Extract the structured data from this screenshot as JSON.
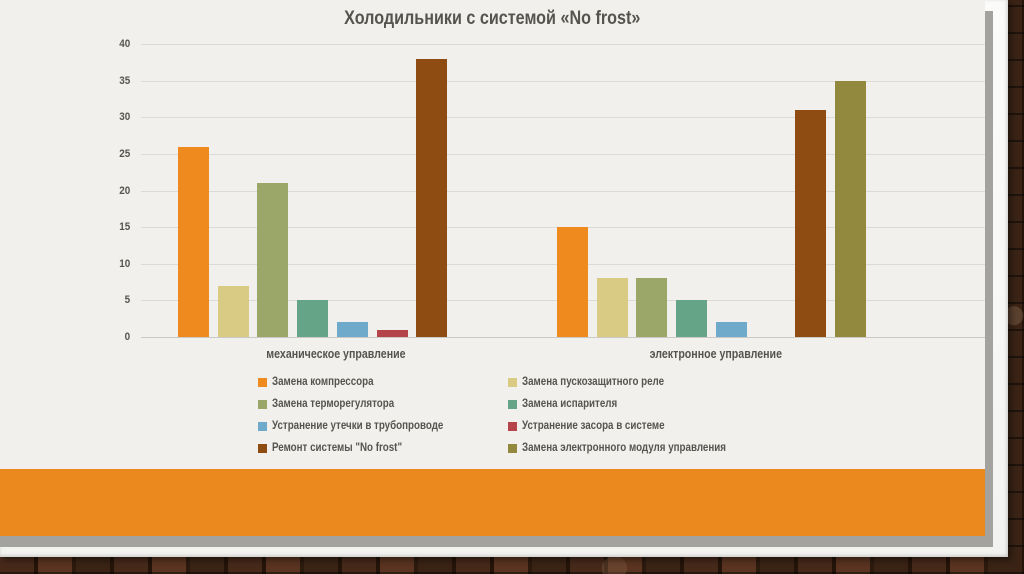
{
  "slide": {
    "theme": "paper on brick wall",
    "footer_band_color": "#EC891E"
  },
  "colors": {
    "panel_background": "#F1F0ED",
    "paper": "#FAFAF8",
    "panel_shadow": "#A3A29F",
    "gridline": "#DBDAD6",
    "text": "#56544E",
    "brick_wall_base": "#241409"
  },
  "chart_data": {
    "type": "bar",
    "title": "Холодильники с системой «No frost»",
    "categories": [
      "механическое управление",
      "электронное управление"
    ],
    "series": [
      {
        "name": "Замена компрессора",
        "color": "#EF8A1E",
        "values": [
          26,
          15
        ]
      },
      {
        "name": "Замена пускозащитного реле",
        "color": "#D9CB84",
        "values": [
          7,
          8
        ]
      },
      {
        "name": "Замена терморегулятора",
        "color": "#9AA768",
        "values": [
          21,
          8
        ]
      },
      {
        "name": "Замена испарителя",
        "color": "#66A488",
        "values": [
          5,
          5
        ]
      },
      {
        "name": "Устранение утечки в трубопроводе",
        "color": "#6FAACA",
        "values": [
          2,
          2
        ]
      },
      {
        "name": "Устранение засора в системе",
        "color": "#B4434A",
        "values": [
          1,
          0
        ]
      },
      {
        "name": "Ремонт системы \"No frost\"",
        "color": "#8E4C12",
        "values": [
          38,
          31
        ]
      },
      {
        "name": "Замена электронного модуля управления",
        "color": "#92883E",
        "values": [
          0,
          35
        ]
      }
    ],
    "ylim": [
      0,
      40
    ],
    "ytick_step": 5,
    "yticks": [
      0,
      5,
      10,
      15,
      20,
      25,
      30,
      35,
      40
    ],
    "grid": true,
    "legend_position": "bottom",
    "legend_columns": 2
  }
}
